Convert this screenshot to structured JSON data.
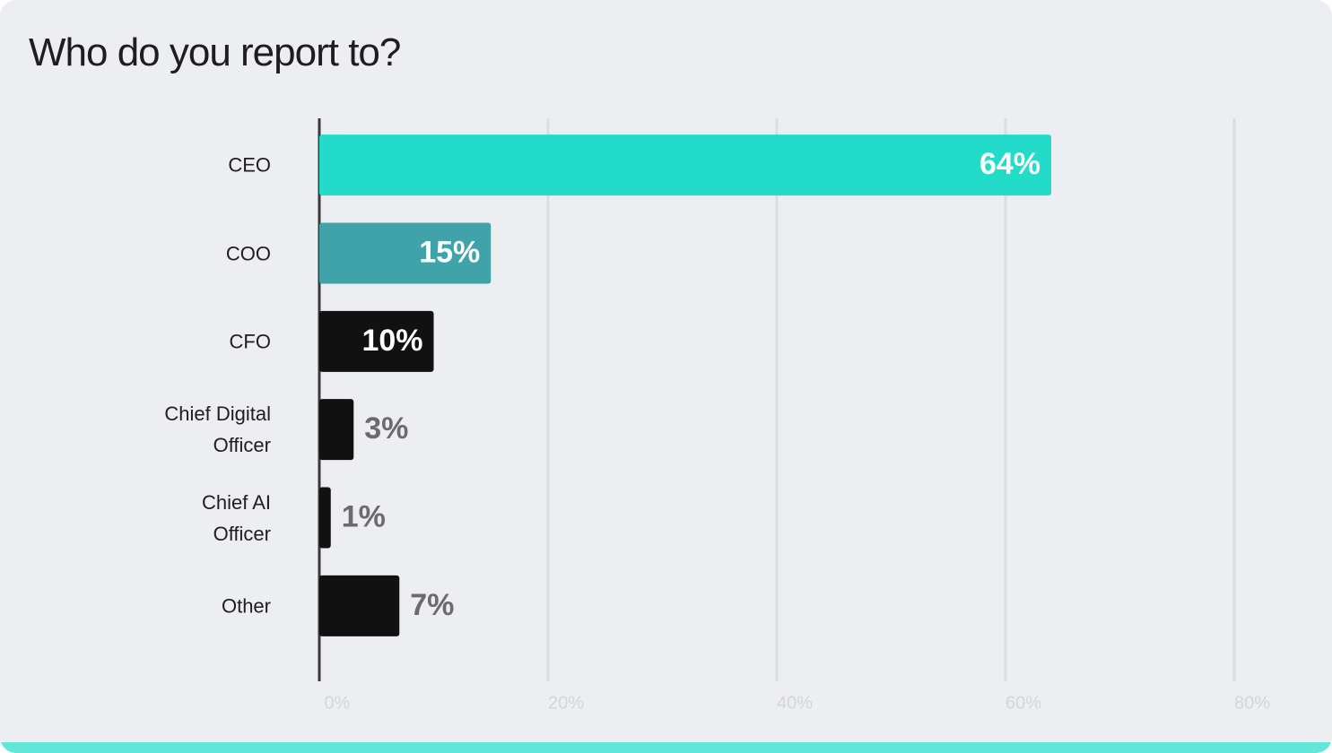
{
  "chart_data": {
    "type": "bar",
    "orientation": "horizontal",
    "title": "Who do you report to?",
    "categories": [
      "CEO",
      "COO",
      "CFO",
      "Chief Digital Officer",
      "Chief AI Officer",
      "Other"
    ],
    "values": [
      64,
      15,
      10,
      3,
      1,
      7
    ],
    "value_labels": [
      "64%",
      "15%",
      "10%",
      "3%",
      "1%",
      "7%"
    ],
    "colors": [
      "#22dbc9",
      "#40a3aa",
      "#111111",
      "#111111",
      "#111111",
      "#111111"
    ],
    "xlim": [
      0,
      80
    ],
    "xticks": [
      {
        "value": 0,
        "label": "0%"
      },
      {
        "value": 20,
        "label": "20%"
      },
      {
        "value": 40,
        "label": "40%"
      },
      {
        "value": 60,
        "label": "60%"
      },
      {
        "value": 80,
        "label": "80%"
      }
    ],
    "grid": true
  }
}
